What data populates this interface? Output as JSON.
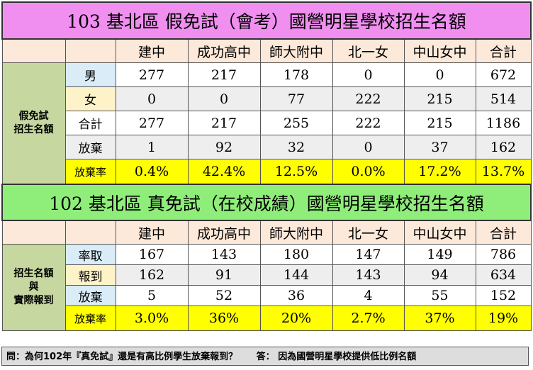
{
  "section1": {
    "title": "103 基北區 假免試（會考）國營明星學校招生名額",
    "columns": [
      "建中",
      "成功高中",
      "師大附中",
      "北一女",
      "中山女中",
      "合計"
    ],
    "side_label_line1": "假免試",
    "side_label_line2": "招生名額",
    "rows": [
      {
        "label": "男",
        "values": [
          "277",
          "217",
          "178",
          "0",
          "0",
          "672"
        ]
      },
      {
        "label": "女",
        "values": [
          "0",
          "0",
          "77",
          "222",
          "215",
          "514"
        ]
      },
      {
        "label": "合計",
        "values": [
          "277",
          "217",
          "255",
          "222",
          "215",
          "1186"
        ]
      },
      {
        "label": "放棄",
        "values": [
          "1",
          "92",
          "32",
          "0",
          "37",
          "162"
        ]
      },
      {
        "label": "放棄率",
        "values": [
          "0.4%",
          "42.4%",
          "12.5%",
          "0.0%",
          "17.2%",
          "13.7%"
        ]
      }
    ]
  },
  "section2": {
    "title": "102 基北區 真免試（在校成績）國營明星學校招生名額",
    "columns": [
      "建中",
      "成功高中",
      "師大附中",
      "北一女",
      "中山女中",
      "合計"
    ],
    "side_label_line1": "招生名額",
    "side_label_line2": "與",
    "side_label_line3": "實際報到",
    "rows": [
      {
        "label": "率取",
        "values": [
          "167",
          "143",
          "180",
          "147",
          "149",
          "786"
        ]
      },
      {
        "label": "報到",
        "values": [
          "162",
          "91",
          "144",
          "143",
          "94",
          "634"
        ]
      },
      {
        "label": "放棄",
        "values": [
          "5",
          "52",
          "36",
          "4",
          "55",
          "152"
        ]
      },
      {
        "label": "放棄率",
        "values": [
          "3.0%",
          "36%",
          "20%",
          "2.7%",
          "37%",
          "19%"
        ]
      }
    ]
  },
  "footer": {
    "question": "問：為何102年『真免試』還是有高比例學生放棄報到？",
    "answer": "答： 因為國營明星學校提供低比例名額"
  }
}
